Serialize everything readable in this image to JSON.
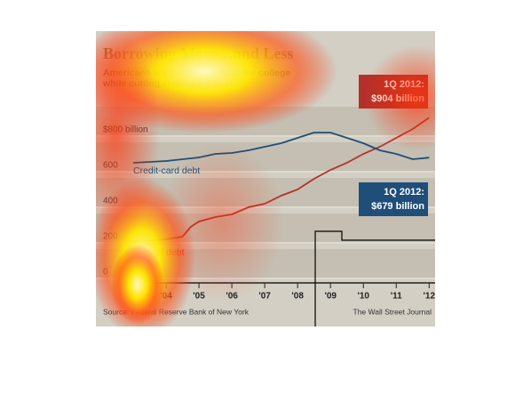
{
  "chart_data": {
    "type": "line",
    "title": "Borrowing More…and Less",
    "subtitle": "Americans are borrowing more for college while cutting credit-card debt.",
    "x": [
      2003,
      2003.5,
      2004,
      2004.5,
      2004.75,
      2005,
      2005.5,
      2006,
      2006.5,
      2007,
      2007.5,
      2008,
      2008.5,
      2009,
      2009.5,
      2010,
      2010.5,
      2011,
      2011.5,
      2012
    ],
    "series": [
      {
        "name": "Student debt",
        "color": "#b5302a",
        "values": [
          205,
          212,
          220,
          235,
          290,
          320,
          345,
          360,
          400,
          420,
          465,
          500,
          560,
          610,
          650,
          700,
          740,
          790,
          840,
          904
        ]
      },
      {
        "name": "Credit-card debt",
        "color": "#1f4e79",
        "values": [
          650,
          655,
          660,
          670,
          675,
          680,
          700,
          705,
          720,
          740,
          760,
          790,
          820,
          820,
          790,
          760,
          720,
          700,
          670,
          679
        ]
      }
    ],
    "annotations": [
      {
        "lines": [
          "1Q 2012:",
          "$904 billion"
        ],
        "color": "#b5302a"
      },
      {
        "lines": [
          "1Q 2012:",
          "$679 billion"
        ],
        "color": "#1f4e79"
      }
    ],
    "xlim": [
      2003,
      2012.1
    ],
    "xticks": [
      {
        "value": 2004,
        "label": "'04"
      },
      {
        "value": 2005,
        "label": "'05"
      },
      {
        "value": 2006,
        "label": "'06"
      },
      {
        "value": 2007,
        "label": "'07"
      },
      {
        "value": 2008,
        "label": "'08"
      },
      {
        "value": 2009,
        "label": "'09"
      },
      {
        "value": 2010,
        "label": "'10"
      },
      {
        "value": 2011,
        "label": "'11"
      },
      {
        "value": 2012,
        "label": "'12"
      }
    ],
    "ylim": [
      0,
      1000
    ],
    "yticks": [
      0,
      200,
      400,
      600,
      {
        "value": 800,
        "label": "$800 billion"
      }
    ],
    "grid": true,
    "source": "Source: Federal Reserve Bank of New York",
    "credit": "The Wall Street Journal"
  }
}
